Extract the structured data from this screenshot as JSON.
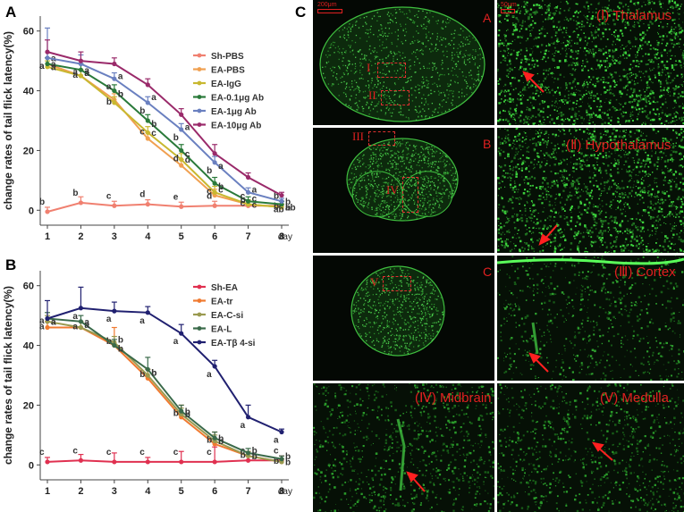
{
  "panels": {
    "a": "A",
    "b": "B",
    "c": "C"
  },
  "chart_data": [
    {
      "type": "line",
      "panel": "A",
      "xlabel": "day",
      "ylabel": "change rates of tail flick latency(%)",
      "x": [
        1,
        2,
        3,
        4,
        5,
        6,
        7,
        8
      ],
      "xticks": [
        "1",
        "2",
        "3",
        "4",
        "5",
        "6",
        "7",
        "8"
      ],
      "yticks": [
        "0",
        "20",
        "40",
        "60"
      ],
      "ylim": [
        -5,
        65
      ],
      "legend_position": "top-right",
      "series": [
        {
          "name": "Sh-PBS",
          "color": "#f08070",
          "values": [
            -0.5,
            2.5,
            1.5,
            2,
            1.2,
            1.5,
            1.5,
            1.5
          ],
          "errors": [
            1.5,
            2,
            1.5,
            1.5,
            1.5,
            1.5,
            1.5,
            1.5
          ],
          "labels": [
            "b",
            "b",
            "c",
            "d",
            "e",
            "d",
            "c",
            "b"
          ]
        },
        {
          "name": "EA-PBS",
          "color": "#f0a050",
          "values": [
            49,
            45,
            37,
            24,
            15,
            5,
            2,
            1
          ],
          "errors": [
            2,
            2,
            2,
            2,
            2,
            2,
            1.5,
            1
          ],
          "labels": [
            "a",
            "a",
            "b",
            "c",
            "d",
            "c",
            "c",
            "b"
          ]
        },
        {
          "name": "EA-IgG",
          "color": "#c8b830",
          "values": [
            48,
            45,
            36,
            26,
            17,
            6,
            2,
            1
          ],
          "errors": [
            2,
            2,
            2,
            2,
            2,
            2,
            1.5,
            1
          ],
          "labels": [
            "a",
            "a",
            "b",
            "c",
            "d",
            "c",
            "c",
            "b"
          ]
        },
        {
          "name": "EA-0.1μg Ab",
          "color": "#2a7a3a",
          "values": [
            49,
            47,
            40,
            30,
            20,
            9,
            3,
            2
          ],
          "errors": [
            2,
            2,
            2,
            2,
            2,
            2,
            1.5,
            1
          ],
          "labels": [
            "a",
            "a",
            "b",
            "b",
            "c",
            "b",
            "c",
            "b"
          ]
        },
        {
          "name": "EA-1μg Ab",
          "color": "#6a80c0",
          "values": [
            51,
            49,
            44,
            36,
            27,
            16,
            6,
            3
          ],
          "errors": [
            10,
            3,
            2,
            2,
            2,
            2,
            1.5,
            1
          ],
          "labels": [
            "a",
            "a",
            "a",
            "b",
            "b",
            "b",
            "b",
            "ab"
          ]
        },
        {
          "name": "EA-10μg Ab",
          "color": "#9a2a6a",
          "values": [
            53,
            50,
            49,
            42,
            32,
            19,
            11,
            5
          ],
          "errors": [
            4,
            3,
            2,
            2,
            2,
            3,
            1.5,
            1
          ],
          "labels": [
            "a",
            "a",
            "a",
            "a",
            "a",
            "a",
            "a",
            "ab"
          ]
        }
      ]
    },
    {
      "type": "line",
      "panel": "B",
      "xlabel": "day",
      "ylabel": "change rates of tail flick latency(%)",
      "x": [
        1,
        2,
        3,
        4,
        5,
        6,
        7,
        8
      ],
      "xticks": [
        "1",
        "2",
        "3",
        "4",
        "5",
        "6",
        "7",
        "8"
      ],
      "yticks": [
        "0",
        "20",
        "40",
        "60"
      ],
      "ylim": [
        -5,
        65
      ],
      "legend_position": "top-right",
      "series": [
        {
          "name": "Sh-EA",
          "color": "#e03050",
          "values": [
            1,
            1.5,
            1,
            1,
            1,
            1,
            1.5,
            1.5
          ],
          "errors": [
            1.5,
            2,
            3,
            1.5,
            3.5,
            5,
            1.5,
            1.5
          ],
          "labels": [
            "c",
            "c",
            "c",
            "c",
            "c",
            "c",
            "c",
            "c"
          ]
        },
        {
          "name": "EA-tr",
          "color": "#f07a30",
          "values": [
            46,
            46,
            40,
            29,
            16,
            7,
            3,
            1
          ],
          "errors": [
            2,
            2,
            6,
            3,
            4,
            4,
            1.5,
            1
          ],
          "labels": [
            "a",
            "a",
            "b",
            "b",
            "b",
            "b",
            "b",
            "b"
          ]
        },
        {
          "name": "EA-C-si",
          "color": "#9a9a50",
          "values": [
            48,
            46,
            41,
            30,
            17,
            8,
            3,
            1
          ],
          "errors": [
            2,
            2,
            2,
            2,
            2,
            2,
            1.5,
            1
          ],
          "labels": [
            "a",
            "a",
            "b",
            "b",
            "b",
            "b",
            "b",
            "b"
          ]
        },
        {
          "name": "EA-L",
          "color": "#3a6a4a",
          "values": [
            49,
            48,
            40,
            32,
            18,
            9,
            4,
            2
          ],
          "errors": [
            2,
            2,
            2,
            4,
            2,
            2,
            1.5,
            1
          ],
          "labels": [
            "a",
            "a",
            "b",
            "b",
            "b",
            "b",
            "b",
            "b"
          ]
        },
        {
          "name": "EA-Tβ 4-si",
          "color": "#202070",
          "values": [
            49,
            52.5,
            51.5,
            51,
            44,
            33,
            16,
            11
          ],
          "errors": [
            6,
            7,
            3,
            2,
            3,
            2,
            4,
            1
          ],
          "labels": [
            "a",
            "a",
            "a",
            "a",
            "a",
            "a",
            "a",
            "a"
          ]
        }
      ]
    }
  ],
  "micro": {
    "scale_1": "200μm",
    "scale_2": "50μm",
    "sub_a": "A",
    "sub_b": "B",
    "sub_c": "C",
    "roi_1": "I",
    "roi_2": "II",
    "roi_3": "III",
    "roi_4": "IV",
    "roi_5": "V",
    "cap_thalamus": "(Ⅰ) Thalamus",
    "cap_hypothalamus": "(Ⅱ) Hypothalamus",
    "cap_cortex": "(Ⅲ) Cortex",
    "cap_midbrain": "(Ⅳ) Midbrain",
    "cap_medulla": "(Ⅴ) Medulla"
  }
}
